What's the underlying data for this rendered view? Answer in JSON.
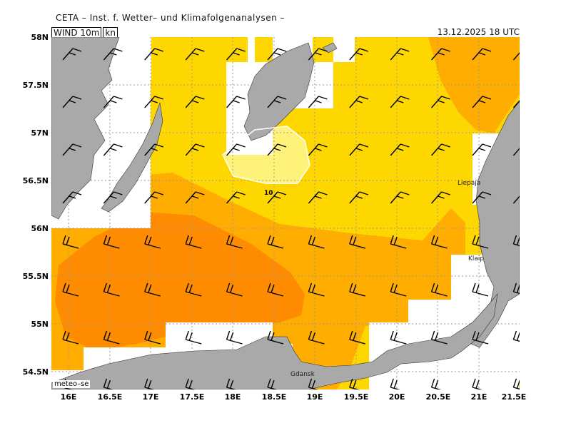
{
  "header": {
    "title": "CETA – Inst. f. Wetter– und Klimafolgenanalysen –",
    "field": "WIND 10m",
    "unit": "kn",
    "datetime": "13.12.2025 18 UTC"
  },
  "axes": {
    "y_labels": [
      "58N",
      "57.5N",
      "57N",
      "56.5N",
      "56N",
      "55.5N",
      "55N",
      "54.5N"
    ],
    "x_labels": [
      "16E",
      "16.5E",
      "17E",
      "17.5E",
      "18E",
      "18.5E",
      "19E",
      "19.5E",
      "20E",
      "20.5E",
      "21E",
      "21.5E"
    ]
  },
  "cities": {
    "liepaja": "Liepaja",
    "klaipeda": "Klaip",
    "gdansk": "Gdansk"
  },
  "contour_label": "10",
  "credit": "meteo–se",
  "colors": {
    "land": "#a9a9a9",
    "c10": "#fff27a",
    "c15": "#ffd700",
    "c20": "#ffad00",
    "c25": "#ff8c00"
  }
}
